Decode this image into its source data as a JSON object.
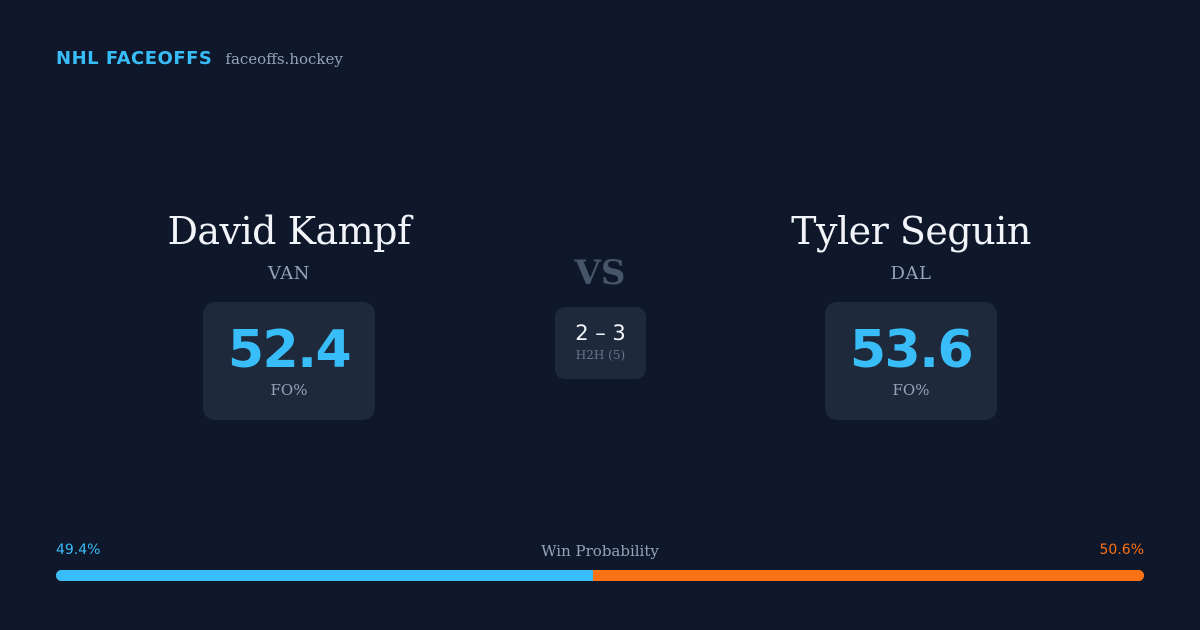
{
  "brand": {
    "name": "NHL FACEOFFS",
    "domain": "faceoffs.hockey"
  },
  "matchup": {
    "vs_label": "VS",
    "h2h": {
      "score": "2 – 3",
      "label": "H2H (5)"
    },
    "players": [
      {
        "name": "David Kampf",
        "team": "VAN",
        "fo_pct": "52.4",
        "fo_label": "FO%"
      },
      {
        "name": "Tyler Seguin",
        "team": "DAL",
        "fo_pct": "53.6",
        "fo_label": "FO%"
      }
    ]
  },
  "win_probability": {
    "title": "Win Probability",
    "left_label": "49.4%",
    "right_label": "50.6%",
    "left_value": 49.4,
    "right_value": 50.6,
    "left_color": "#38bdf8",
    "right_color": "#f97316"
  }
}
